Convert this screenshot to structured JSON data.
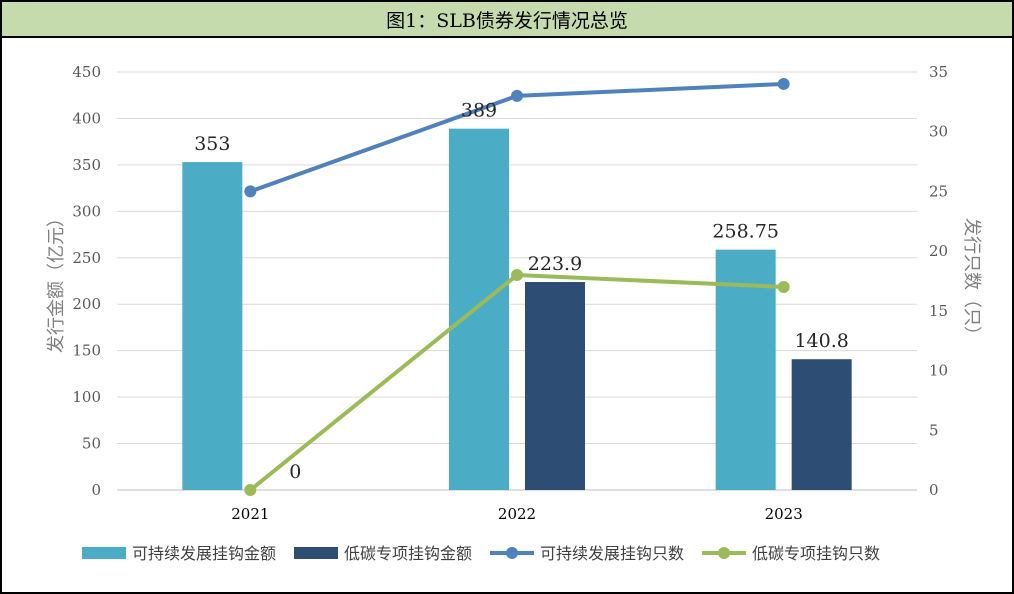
{
  "title": "图1：SLB债券发行情况总览",
  "chart_data": {
    "type": "bar",
    "categories": [
      "2021",
      "2022",
      "2023"
    ],
    "y_left": {
      "label": "发行金额（亿元）",
      "min": 0,
      "max": 450,
      "step": 50
    },
    "y_right": {
      "label": "发行只数（只）",
      "min": 0,
      "max": 35,
      "step": 5
    },
    "grid": true,
    "legend_position": "bottom",
    "series": [
      {
        "name": "可持续发展挂钩金额",
        "kind": "bar",
        "axis": "left",
        "color": "#4bacc6",
        "values": [
          353,
          389,
          258.75
        ],
        "labels": [
          "353",
          "389",
          "258.75"
        ]
      },
      {
        "name": "低碳专项挂钩金额",
        "kind": "bar",
        "axis": "left",
        "color": "#2e4d75",
        "values": [
          0,
          223.9,
          140.8
        ],
        "labels": [
          "0",
          "223.9",
          "140.8"
        ]
      },
      {
        "name": "可持续发展挂钩只数",
        "kind": "line",
        "axis": "right",
        "color": "#4f81bd",
        "values": [
          25,
          33,
          34
        ]
      },
      {
        "name": "低碳专项挂钩只数",
        "kind": "line",
        "axis": "right",
        "color": "#9bbb59",
        "values": [
          0,
          18,
          17
        ]
      }
    ]
  }
}
